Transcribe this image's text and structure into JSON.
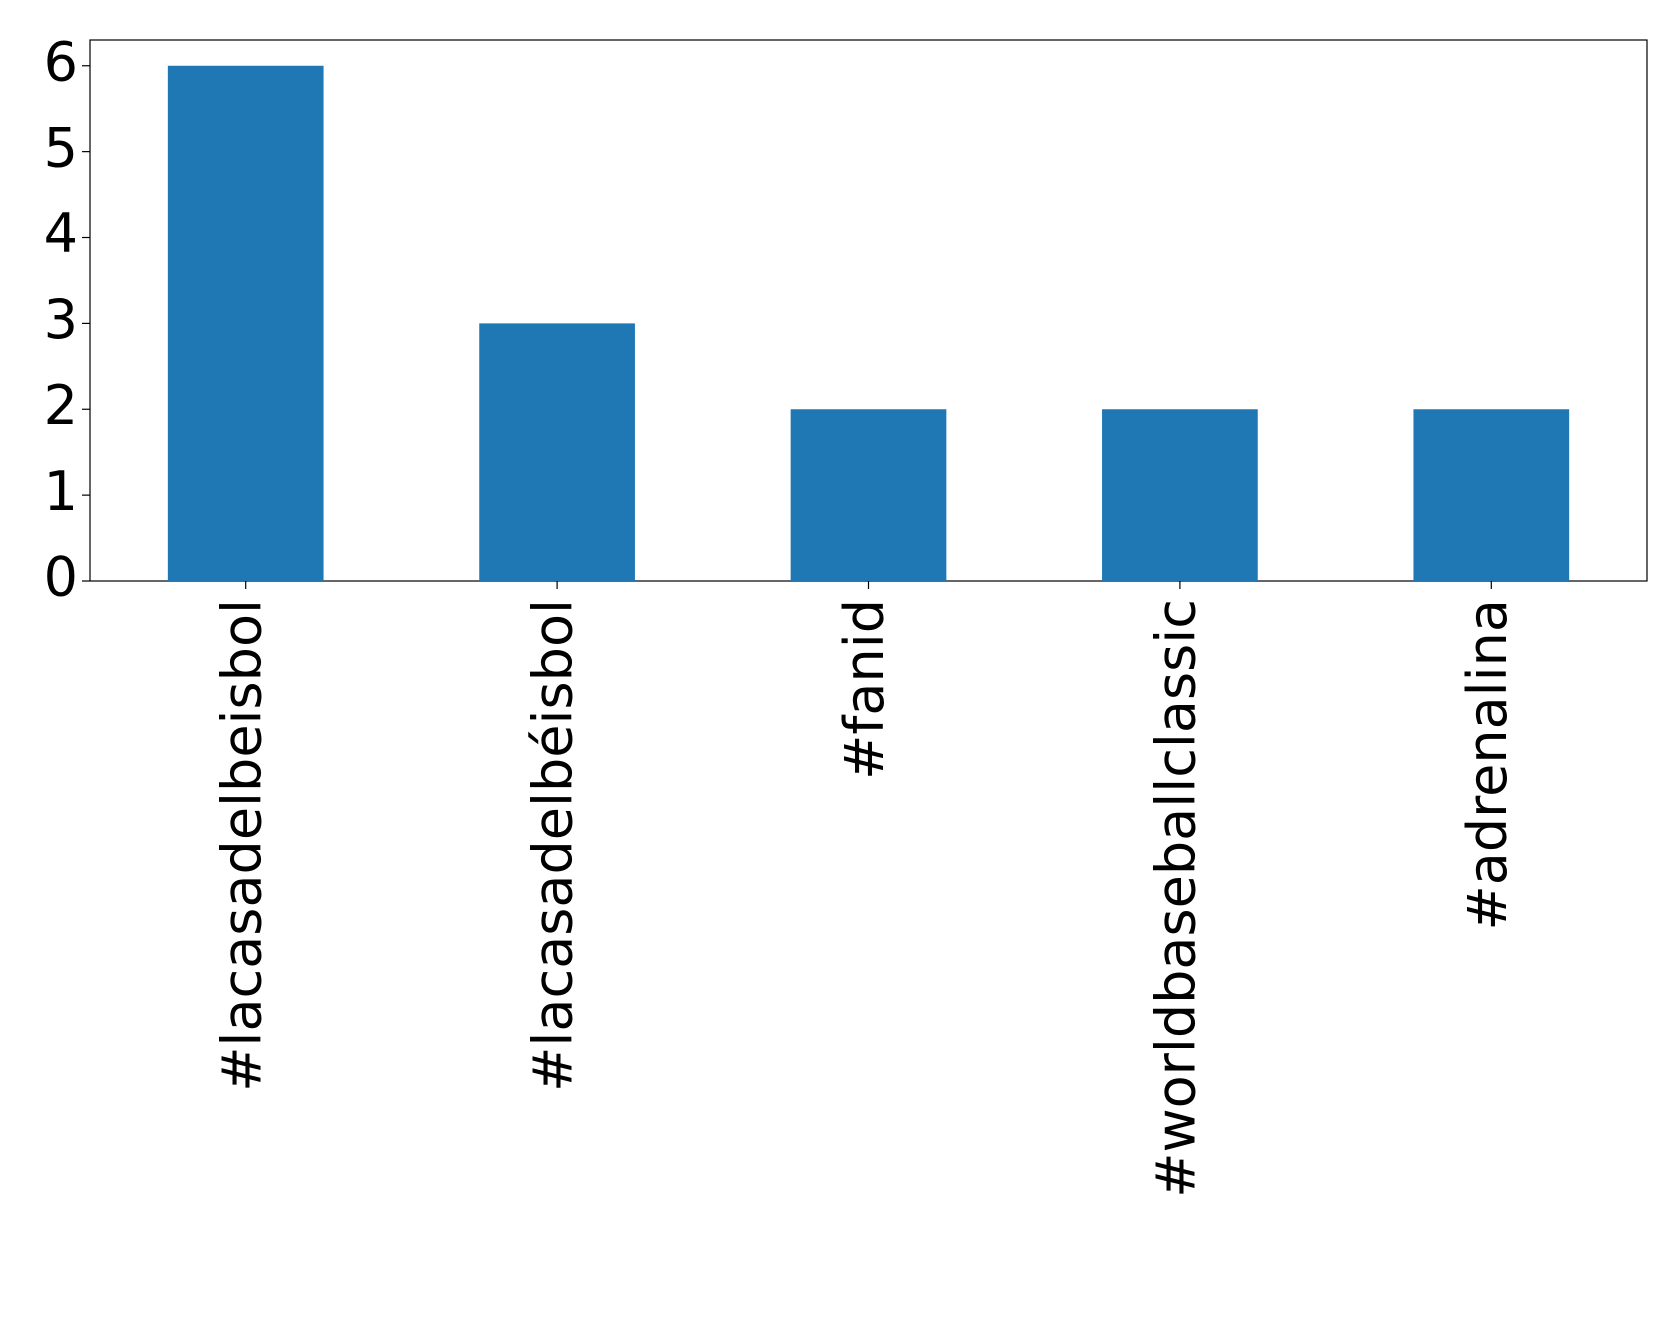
{
  "chart_data": {
    "type": "bar",
    "categories": [
      "#lacasadelbeisbol",
      "#lacasadelbéisbol",
      "#fanid",
      "#worldbaseballclassic",
      "#adrenalina"
    ],
    "values": [
      6,
      3,
      2,
      2,
      2
    ],
    "color": "#1f77b4",
    "ylim": [
      0,
      6.3
    ],
    "yticks": [
      0,
      1,
      2,
      3,
      4,
      5,
      6
    ],
    "grid": false
  }
}
